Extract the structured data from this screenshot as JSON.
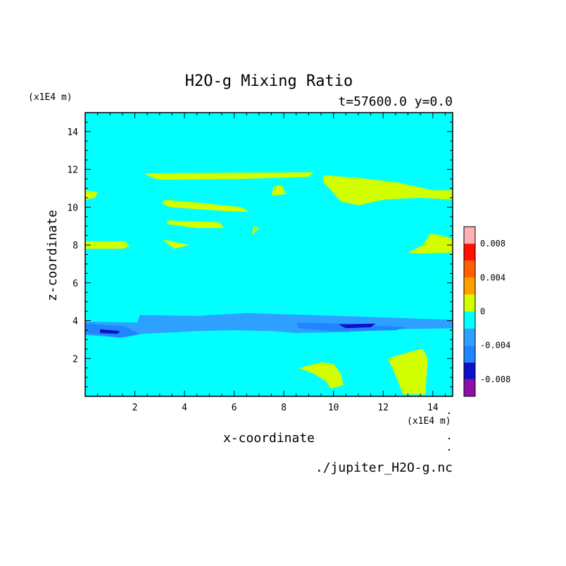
{
  "chart_data": {
    "type": "heatmap",
    "title": "H2O-g Mixing Ratio",
    "subtitle": "t=57600.0 y=0.0",
    "xlabel": "x-coordinate",
    "ylabel": "z-coordinate",
    "x_unit": "(x1E4 m)",
    "y_unit": "(x1E4 m)",
    "source_label": "./jupiter_H2O-g.nc",
    "xlim": [
      0,
      14.8
    ],
    "ylim": [
      0,
      15
    ],
    "x_ticks": [
      2,
      4,
      6,
      8,
      10,
      12,
      14
    ],
    "y_ticks": [
      2,
      4,
      6,
      8,
      10,
      12,
      14
    ],
    "background_level": 0,
    "colorbar": {
      "levels": [
        -0.01,
        -0.008,
        -0.006,
        -0.004,
        -0.002,
        0,
        0.002,
        0.004,
        0.006,
        0.008,
        0.01
      ],
      "colors": [
        "#8a10a8",
        "#1010c8",
        "#1f86ff",
        "#2ea0ff",
        "#00ffff",
        "#d2ff00",
        "#ffa000",
        "#ff6000",
        "#ff1000",
        "#ffb0b0"
      ],
      "labeled_ticks": [
        "0.008",
        "0.004",
        "0",
        "-0.004",
        "-0.008"
      ],
      "labeled_values": [
        0.008,
        0.004,
        0,
        -0.004,
        -0.008
      ]
    },
    "regions": [
      {
        "level": "0 to 0.002",
        "color": "#d2ff00",
        "points": [
          [
            2.4,
            11.8
          ],
          [
            9.2,
            11.85
          ],
          [
            9.0,
            11.6
          ],
          [
            6.5,
            11.5
          ],
          [
            3.0,
            11.45
          ],
          [
            2.6,
            11.6
          ]
        ]
      },
      {
        "level": "0 to 0.002",
        "color": "#d2ff00",
        "points": [
          [
            9.6,
            11.7
          ],
          [
            11.0,
            11.55
          ],
          [
            12.6,
            11.3
          ],
          [
            14.0,
            10.9
          ],
          [
            14.8,
            10.9
          ],
          [
            14.8,
            10.4
          ],
          [
            13.5,
            10.5
          ],
          [
            12.0,
            10.4
          ],
          [
            11.0,
            10.1
          ],
          [
            10.3,
            10.3
          ],
          [
            9.9,
            10.9
          ],
          [
            9.6,
            11.3
          ]
        ]
      },
      {
        "level": "0 to 0.002",
        "color": "#d2ff00",
        "points": [
          [
            7.6,
            11.1
          ],
          [
            7.9,
            11.2
          ],
          [
            8.1,
            10.7
          ],
          [
            7.5,
            10.6
          ]
        ]
      },
      {
        "level": "0 to 0.002",
        "color": "#d2ff00",
        "points": [
          [
            0,
            10.9
          ],
          [
            0.5,
            10.8
          ],
          [
            0.4,
            10.5
          ],
          [
            0,
            10.4
          ]
        ]
      },
      {
        "level": "0 to 0.002",
        "color": "#d2ff00",
        "points": [
          [
            3.2,
            10.4
          ],
          [
            4.5,
            10.25
          ],
          [
            6.3,
            10.0
          ],
          [
            6.6,
            9.75
          ],
          [
            5.6,
            9.8
          ],
          [
            4.5,
            9.9
          ],
          [
            3.4,
            10.0
          ],
          [
            3.1,
            10.2
          ]
        ]
      },
      {
        "level": "0 to 0.002",
        "color": "#d2ff00",
        "points": [
          [
            3.3,
            9.3
          ],
          [
            5.4,
            9.2
          ],
          [
            5.6,
            8.9
          ],
          [
            4.5,
            8.9
          ],
          [
            3.3,
            9.1
          ]
        ]
      },
      {
        "level": "0 to 0.002",
        "color": "#d2ff00",
        "points": [
          [
            6.8,
            9.0
          ],
          [
            7.0,
            8.9
          ],
          [
            6.7,
            8.5
          ]
        ]
      },
      {
        "level": "0 to 0.002",
        "color": "#d2ff00",
        "points": [
          [
            3.1,
            8.3
          ],
          [
            4.2,
            8.0
          ],
          [
            3.6,
            7.8
          ],
          [
            3.4,
            8.0
          ]
        ]
      },
      {
        "level": "0 to 0.002",
        "color": "#d2ff00",
        "points": [
          [
            0,
            8.2
          ],
          [
            1.6,
            8.2
          ],
          [
            1.8,
            7.95
          ],
          [
            1.5,
            7.8
          ],
          [
            0,
            7.8
          ]
        ]
      },
      {
        "level": "0 to 0.002",
        "color": "#d2ff00",
        "points": [
          [
            13.9,
            8.6
          ],
          [
            14.4,
            8.5
          ],
          [
            14.8,
            8.3
          ],
          [
            14.8,
            7.6
          ],
          [
            13.5,
            7.55
          ],
          [
            13.0,
            7.6
          ],
          [
            13.6,
            8.0
          ]
        ]
      },
      {
        "level": "-0.004 to -0.002",
        "color": "#2ea0ff",
        "points": [
          [
            0,
            3.95
          ],
          [
            2.1,
            3.9
          ],
          [
            2.2,
            4.3
          ],
          [
            4.5,
            4.25
          ],
          [
            6.5,
            4.4
          ],
          [
            9.0,
            4.3
          ],
          [
            11.5,
            4.2
          ],
          [
            13.5,
            4.1
          ],
          [
            14.8,
            4.05
          ],
          [
            14.8,
            3.6
          ],
          [
            12.5,
            3.55
          ],
          [
            10.5,
            3.4
          ],
          [
            8.5,
            3.35
          ],
          [
            7.5,
            3.45
          ],
          [
            6.0,
            3.5
          ],
          [
            4.5,
            3.45
          ],
          [
            2.3,
            3.3
          ],
          [
            1.5,
            3.1
          ],
          [
            0,
            3.25
          ]
        ]
      },
      {
        "level": "-0.006 to -0.004",
        "color": "#1f86ff",
        "points": [
          [
            0,
            3.85
          ],
          [
            1.6,
            3.7
          ],
          [
            2.2,
            3.3
          ],
          [
            1.4,
            3.1
          ],
          [
            0,
            3.35
          ]
        ]
      },
      {
        "level": "-0.006 to -0.004",
        "color": "#1f86ff",
        "points": [
          [
            8.5,
            3.9
          ],
          [
            10.5,
            3.85
          ],
          [
            11.5,
            3.75
          ],
          [
            13.0,
            3.65
          ],
          [
            12.5,
            3.5
          ],
          [
            11.0,
            3.45
          ],
          [
            10.0,
            3.45
          ],
          [
            8.6,
            3.6
          ]
        ]
      },
      {
        "level": "-0.008 to -0.006",
        "color": "#1010c8",
        "points": [
          [
            0.6,
            3.55
          ],
          [
            1.4,
            3.45
          ],
          [
            1.3,
            3.3
          ],
          [
            0.6,
            3.35
          ]
        ]
      },
      {
        "level": "-0.008 to -0.006",
        "color": "#1010c8",
        "points": [
          [
            10.2,
            3.8
          ],
          [
            11.7,
            3.85
          ],
          [
            11.5,
            3.65
          ],
          [
            10.5,
            3.6
          ]
        ]
      },
      {
        "level": "0 to 0.002",
        "color": "#d2ff00",
        "points": [
          [
            8.6,
            1.5
          ],
          [
            9.5,
            1.8
          ],
          [
            10.0,
            1.7
          ],
          [
            10.3,
            1.2
          ],
          [
            10.4,
            0.6
          ],
          [
            9.9,
            0.4
          ],
          [
            9.7,
            0.8
          ],
          [
            9.2,
            1.2
          ]
        ]
      },
      {
        "level": "0 to 0.002",
        "color": "#d2ff00",
        "points": [
          [
            12.2,
            2.0
          ],
          [
            13.2,
            2.4
          ],
          [
            13.6,
            2.5
          ],
          [
            13.8,
            2.0
          ],
          [
            13.7,
            0.1
          ],
          [
            12.8,
            0.1
          ],
          [
            12.6,
            0.8
          ]
        ]
      }
    ]
  }
}
